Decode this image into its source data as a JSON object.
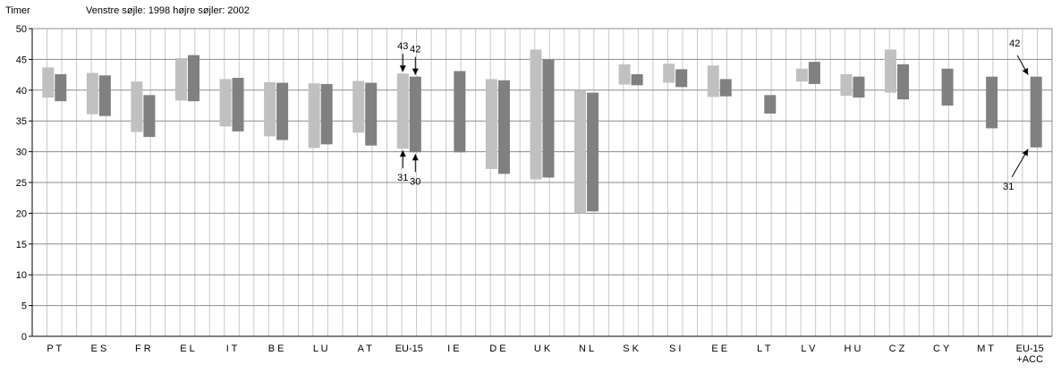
{
  "header": {
    "unit_label": "Timer",
    "subtitle": "Venstre søjle: 1998   højre søjler: 2002"
  },
  "chart_data": {
    "type": "bar",
    "subtype": "floating-range",
    "ylabel": "Timer",
    "ylim": [
      0,
      50
    ],
    "yticks": [
      0,
      5,
      10,
      15,
      20,
      25,
      30,
      35,
      40,
      45,
      50
    ],
    "grid": true,
    "colors": {
      "1998": "#c0c0c0",
      "2002": "#808080"
    },
    "series": [
      {
        "name": "1998",
        "ranges": [
          [
            38.8,
            43.7
          ],
          [
            36.1,
            42.8
          ],
          [
            33.2,
            41.4
          ],
          [
            38.3,
            45.2
          ],
          [
            34.1,
            41.8
          ],
          [
            32.5,
            41.3
          ],
          [
            30.6,
            41.1
          ],
          [
            33.1,
            41.5
          ],
          [
            30.5,
            42.7
          ],
          null,
          [
            27.2,
            41.8
          ],
          [
            25.5,
            46.6
          ],
          [
            20.0,
            40.0
          ],
          [
            40.9,
            44.2
          ],
          [
            41.2,
            44.3
          ],
          [
            38.9,
            44.0
          ],
          null,
          [
            41.4,
            43.5
          ],
          [
            39.1,
            42.6
          ],
          [
            39.6,
            46.6
          ],
          null,
          null,
          null
        ]
      },
      {
        "name": "2002",
        "ranges": [
          [
            38.2,
            42.6
          ],
          [
            35.8,
            42.4
          ],
          [
            32.4,
            39.2
          ],
          [
            38.2,
            45.7
          ],
          [
            33.3,
            42.0
          ],
          [
            31.9,
            41.2
          ],
          [
            31.2,
            41.0
          ],
          [
            31.0,
            41.2
          ],
          [
            29.9,
            42.2
          ],
          [
            29.9,
            43.1
          ],
          [
            26.4,
            41.6
          ],
          [
            25.8,
            45.0
          ],
          [
            20.3,
            39.6
          ],
          [
            40.8,
            42.6
          ],
          [
            40.5,
            43.4
          ],
          [
            39.0,
            41.8
          ],
          [
            36.2,
            39.2
          ],
          [
            41.0,
            44.6
          ],
          [
            38.8,
            42.2
          ],
          [
            38.5,
            44.2
          ],
          [
            37.5,
            43.5
          ],
          [
            33.8,
            42.2
          ],
          [
            30.7,
            42.2
          ]
        ]
      }
    ],
    "categories": [
      "P T",
      "E S",
      "F R",
      "E L",
      "I T",
      "B E",
      "L U",
      "A T",
      "EU-15",
      "I E",
      "D E",
      "U K",
      "N L",
      "S K",
      "S I",
      "E E",
      "L T",
      "L V",
      "H U",
      "C Z",
      "C Y",
      "M T",
      "EU-15\n+ACC"
    ],
    "annotations": [
      {
        "text": "43",
        "category": "EU-15",
        "series": "1998",
        "value": 42.7,
        "end": "top"
      },
      {
        "text": "42",
        "category": "EU-15",
        "series": "2002",
        "value": 42.2,
        "end": "top"
      },
      {
        "text": "31",
        "category": "EU-15",
        "series": "1998",
        "value": 30.5,
        "end": "bottom"
      },
      {
        "text": "30",
        "category": "EU-15",
        "series": "2002",
        "value": 29.9,
        "end": "bottom"
      },
      {
        "text": "42",
        "category": "EU-15\n+ACC",
        "series": "2002",
        "value": 42.2,
        "end": "top"
      },
      {
        "text": "31",
        "category": "EU-15\n+ACC",
        "series": "2002",
        "value": 30.7,
        "end": "bottom"
      }
    ]
  }
}
